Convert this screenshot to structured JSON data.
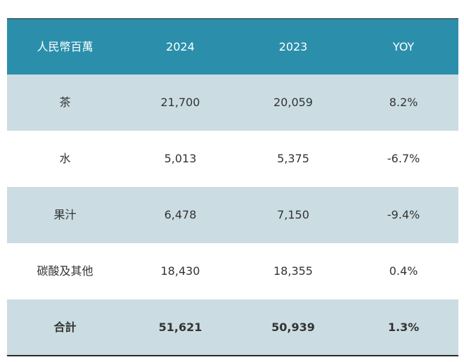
{
  "colors": {
    "header_bg": "#2b8fab",
    "header_text": "#ffffff",
    "band_tinted": "#cbdde2",
    "band_plain": "#ffffff",
    "rule": "#2a2a2a"
  },
  "table": {
    "headers": [
      "人民幣百萬",
      "2024",
      "2023",
      "YOY"
    ],
    "rows": [
      [
        "茶",
        "21,700",
        "20,059",
        "8.2%"
      ],
      [
        "水",
        "5,013",
        "5,375",
        "-6.7%"
      ],
      [
        "果汁",
        "6,478",
        "7,150",
        "-9.4%"
      ],
      [
        "碳酸及其他",
        "18,430",
        "18,355",
        "0.4%"
      ]
    ],
    "total": [
      "合計",
      "51,621",
      "50,939",
      "1.3%"
    ]
  }
}
